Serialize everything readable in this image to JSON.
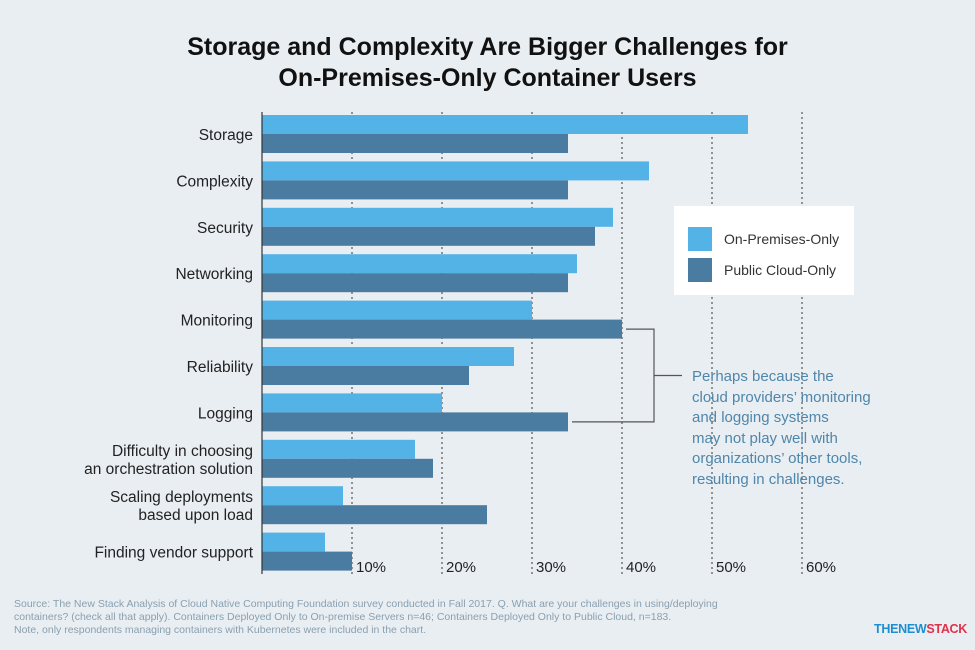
{
  "title_lines": [
    "Storage and Complexity Are Bigger Challenges for",
    "On-Premises-Only Container Users"
  ],
  "colors": {
    "on_prem": "#54b3e6",
    "public_cloud": "#4a7ba0",
    "annotation": "#4f86ab",
    "background": "#e9eef2",
    "gridline": "#555555"
  },
  "chart_data": {
    "type": "bar",
    "orientation": "horizontal",
    "title": "Storage and Complexity Are Bigger Challenges for On-Premises-Only Container Users",
    "categories": [
      "Storage",
      "Complexity",
      "Security",
      "Networking",
      "Monitoring",
      "Reliability",
      "Logging",
      "Difficulty in choosing an orchestration solution",
      "Scaling deployments based upon load",
      "Finding vendor support"
    ],
    "category_lines": [
      [
        "Storage"
      ],
      [
        "Complexity"
      ],
      [
        "Security"
      ],
      [
        "Networking"
      ],
      [
        "Monitoring"
      ],
      [
        "Reliability"
      ],
      [
        "Logging"
      ],
      [
        "Difficulty in choosing",
        "an orchestration solution"
      ],
      [
        "Scaling deployments",
        "based upon load"
      ],
      [
        "Finding vendor support"
      ]
    ],
    "series": [
      {
        "name": "On-Premises-Only",
        "values": [
          54,
          43,
          39,
          35,
          30,
          28,
          20,
          17,
          9,
          7
        ]
      },
      {
        "name": "Public Cloud-Only",
        "values": [
          34,
          34,
          37,
          34,
          40,
          23,
          34,
          19,
          25,
          10
        ]
      }
    ],
    "xlim": [
      0,
      60
    ],
    "xticks": [
      10,
      20,
      30,
      40,
      50,
      60
    ],
    "xtick_labels": [
      "10%",
      "20%",
      "30%",
      "40%",
      "50%",
      "60%"
    ],
    "legend_position": "right"
  },
  "legend": {
    "on_prem_label": "On-Premises-Only",
    "public_label": "Public Cloud-Only"
  },
  "annotation_lines": [
    "Perhaps because the",
    "cloud providers’ monitoring",
    "and logging systems",
    "may not play well with",
    "organizations’ other tools,",
    "resulting in challenges."
  ],
  "source_lines": [
    "Source: The New Stack Analysis of Cloud Native Computing Foundation survey conducted in Fall 2017. Q. What are your challenges in using/deploying",
    "containers? (check all that apply). Containers Deployed Only to On-premise Servers n=46; Containers Deployed Only to Public Cloud, n=183.",
    "Note, only respondents managing containers with Kubernetes were included in the chart."
  ],
  "logo": {
    "part1": "THENEW",
    "part2": "STACK"
  }
}
